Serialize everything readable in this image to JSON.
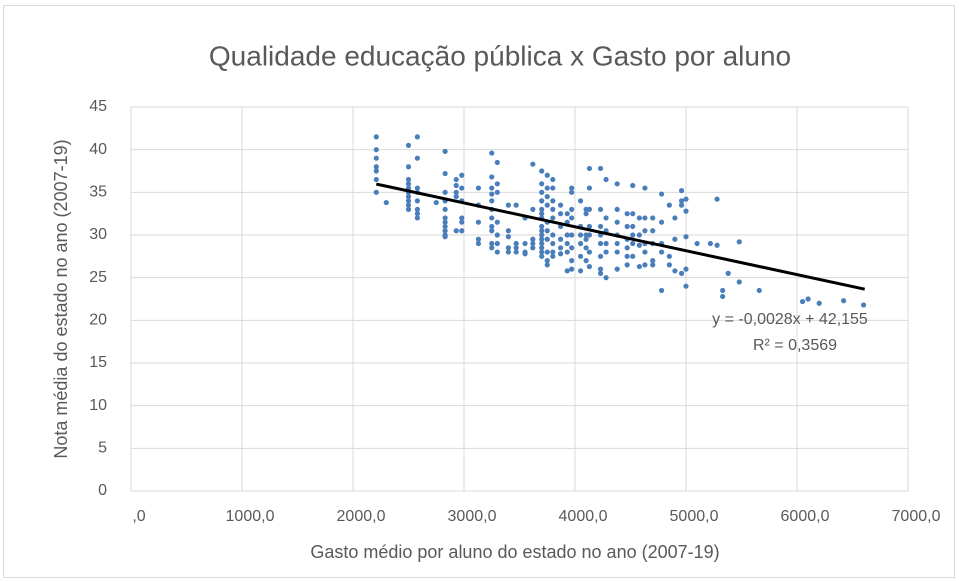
{
  "chart_data": {
    "type": "scatter",
    "title": "Qualidade educação pública x Gasto por aluno",
    "x_label": "Gasto médio por aluno do estado no ano (2007-19)",
    "y_label": "Nota média do estado no ano (2007-19)",
    "xlim": [
      0,
      7000
    ],
    "ylim": [
      0,
      45
    ],
    "xticks": [
      {
        "value": 0,
        "label": ",0"
      },
      {
        "value": 1000,
        "label": "1000,0"
      },
      {
        "value": 2000,
        "label": "2000,0"
      },
      {
        "value": 3000,
        "label": "3000,0"
      },
      {
        "value": 4000,
        "label": "4000,0"
      },
      {
        "value": 5000,
        "label": "5000,0"
      },
      {
        "value": 6000,
        "label": "6000,0"
      },
      {
        "value": 7000,
        "label": "7000,0"
      }
    ],
    "yticks": [
      0,
      5,
      10,
      15,
      20,
      25,
      30,
      35,
      40,
      45
    ],
    "grid": true,
    "color": "#4a7ebb",
    "x": [
      2210,
      2210,
      2210,
      2210,
      2210,
      2210,
      2210,
      2300,
      2500,
      2500,
      2500,
      2500,
      2500,
      2500,
      2500,
      2500,
      2500,
      2500,
      2580,
      2580,
      2580,
      2580,
      2580,
      2580,
      2580,
      2580,
      2750,
      2830,
      2830,
      2830,
      2830,
      2830,
      2830,
      2830,
      2830,
      2830,
      2830,
      2830,
      2930,
      2930,
      2930,
      2930,
      2930,
      2980,
      2980,
      2980,
      2980,
      2980,
      2980,
      3130,
      3130,
      3130,
      3130,
      3130,
      3250,
      3250,
      3250,
      3250,
      3250,
      3250,
      3250,
      3250,
      3250,
      3250,
      3250,
      3300,
      3300,
      3300,
      3300,
      3300,
      3300,
      3300,
      3400,
      3400,
      3400,
      3400,
      3400,
      3470,
      3470,
      3470,
      3470,
      3550,
      3550,
      3550,
      3550,
      3620,
      3620,
      3620,
      3620,
      3620,
      3700,
      3700,
      3700,
      3700,
      3700,
      3700,
      3700,
      3700,
      3700,
      3700,
      3700,
      3700,
      3700,
      3700,
      3700,
      3750,
      3750,
      3750,
      3750,
      3750,
      3750,
      3750,
      3750,
      3750,
      3750,
      3800,
      3800,
      3800,
      3800,
      3800,
      3800,
      3800,
      3800,
      3800,
      3870,
      3870,
      3870,
      3870,
      3870,
      3870,
      3930,
      3930,
      3930,
      3930,
      3930,
      3930,
      3970,
      3970,
      3970,
      3970,
      3970,
      3970,
      3970,
      3970,
      4050,
      4050,
      4050,
      4050,
      4050,
      4050,
      4100,
      4100,
      4100,
      4100,
      4100,
      4100,
      4130,
      4130,
      4130,
      4130,
      4130,
      4130,
      4130,
      4230,
      4230,
      4230,
      4230,
      4230,
      4230,
      4230,
      4230,
      4280,
      4280,
      4280,
      4280,
      4280,
      4280,
      4380,
      4380,
      4380,
      4380,
      4380,
      4380,
      4380,
      4470,
      4470,
      4470,
      4470,
      4470,
      4470,
      4520,
      4520,
      4520,
      4520,
      4520,
      4520,
      4580,
      4580,
      4580,
      4580,
      4630,
      4630,
      4630,
      4630,
      4630,
      4630,
      4700,
      4700,
      4700,
      4700,
      4700,
      4780,
      4780,
      4780,
      4780,
      4780,
      4850,
      4850,
      4850,
      4900,
      4900,
      4900,
      4960,
      4960,
      4960,
      4960,
      5000,
      5000,
      5000,
      5000,
      5000,
      5100,
      5220,
      5280,
      5280,
      5330,
      5330,
      5380,
      5480,
      5480,
      5660,
      6050,
      6100,
      6200,
      6420,
      6600
    ],
    "values": [
      41.5,
      40,
      39,
      38,
      37.5,
      36.5,
      35,
      33.8,
      40.5,
      38,
      36.5,
      36,
      35.5,
      35,
      34.5,
      34,
      33.5,
      33,
      41.5,
      39,
      35.5,
      35,
      34,
      33,
      32.5,
      32,
      33.8,
      39.8,
      37.2,
      35,
      34,
      33,
      32,
      31.5,
      31,
      30.5,
      30,
      29.8,
      36.5,
      35.8,
      35,
      34.5,
      30.5,
      37,
      35.5,
      34,
      32,
      31.5,
      30.5,
      35.5,
      33.5,
      31.5,
      29.5,
      29,
      39.6,
      36.8,
      35.5,
      34.8,
      34,
      33,
      32,
      31,
      30.5,
      29,
      28.5,
      38.5,
      36,
      35,
      31.5,
      30,
      29,
      28,
      33.5,
      30.5,
      29.8,
      28.5,
      28,
      33.5,
      29,
      28.5,
      28,
      32,
      29,
      28,
      27.8,
      38.3,
      33,
      29.5,
      29,
      28.5,
      37.5,
      36,
      35,
      34,
      33,
      32.5,
      32,
      31,
      30.5,
      30,
      29.5,
      29,
      28.5,
      28,
      27.5,
      37,
      35.5,
      34.5,
      33.5,
      31.5,
      30.5,
      29.5,
      28,
      27,
      26.5,
      36.5,
      35.5,
      34,
      33,
      32,
      30,
      29,
      28,
      27.5,
      33.5,
      32.5,
      31,
      29.5,
      28.5,
      27.8,
      32.5,
      31.5,
      30,
      29,
      28,
      25.8,
      35.5,
      35,
      33,
      32,
      30,
      28.5,
      27,
      26,
      34,
      31,
      30,
      29,
      27.5,
      25.8,
      33,
      32.5,
      30,
      29.5,
      28.5,
      27,
      37.8,
      35.5,
      33,
      31,
      30,
      28,
      26.3,
      37.8,
      33,
      31,
      30,
      29,
      27.5,
      26,
      25.5,
      36.5,
      32,
      30.5,
      29,
      28,
      25,
      36,
      33,
      31.5,
      30,
      29,
      28,
      26,
      32.5,
      31,
      29.5,
      28.5,
      27.5,
      26.5,
      35.8,
      32.5,
      31,
      30,
      29,
      27.5,
      32,
      30,
      28.8,
      26.3,
      35.5,
      32,
      30.5,
      29,
      28,
      26.5,
      32,
      30.5,
      29,
      27,
      26.5,
      34.8,
      31.5,
      29,
      28,
      23.5,
      33.5,
      27.5,
      26.5,
      32,
      29.5,
      25.8,
      35.2,
      34,
      33.5,
      25.5,
      34.2,
      32.8,
      29.8,
      26,
      24,
      29,
      29,
      34.2,
      28.8,
      23.5,
      22.8,
      25.5,
      29.2,
      24.5,
      23.5,
      22.2,
      22.5,
      22,
      22.3,
      21.8
    ],
    "trendline": {
      "x": [
        2210,
        6610
      ],
      "values": [
        35.97,
        23.65
      ],
      "equation": "y = -0,0028x + 42,155",
      "r_squared": "R² = 0,3569",
      "color": "#000000"
    }
  }
}
